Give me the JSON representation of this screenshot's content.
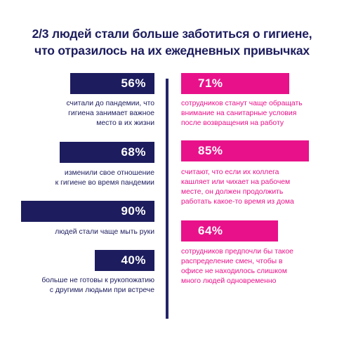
{
  "title": {
    "line1": "2/3 людей стали больше заботиться о гигиене,",
    "line2": "что отразилось на их ежедневных привычках"
  },
  "colors": {
    "navy": "#1c1c5e",
    "pink": "#e8118a"
  },
  "left_stats": [
    {
      "value": "56%",
      "lines": [
        "считали до пандемии, что",
        "гигиена занимает важное",
        "место в их жизни"
      ]
    },
    {
      "value": "68%",
      "lines": [
        "изменили свое отношение",
        "к гигиене во время пандемии"
      ]
    },
    {
      "value": "90%",
      "lines": [
        "людей стали чаще мыть руки"
      ]
    },
    {
      "value": "40%",
      "lines": [
        "больше не готовы к рукопожатию",
        "с другими людьми при встрече"
      ]
    }
  ],
  "right_stats": [
    {
      "value": "71%",
      "lines": [
        "сотрудников станут чаще обращать",
        "внимание на санитарные условия",
        "после возвращения на работу"
      ]
    },
    {
      "value": "85%",
      "lines": [
        "считают, что если их коллега",
        "кашляет или чихает на рабочем",
        "месте, он должен продолжить",
        "работать какое-то время из дома"
      ]
    },
    {
      "value": "64%",
      "lines": [
        "сотрудников предпочли бы такое",
        "распределение смен, чтобы в",
        "офисе не находилось слишком",
        "много людей одновременно"
      ]
    }
  ]
}
